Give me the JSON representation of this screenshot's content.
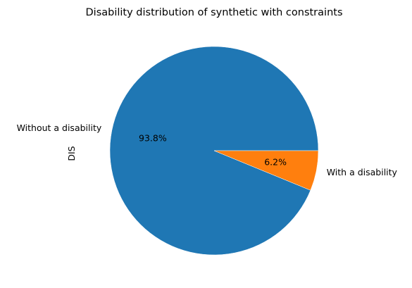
{
  "chart_data": {
    "type": "pie",
    "title": "Disability distribution of synthetic with constraints",
    "ylabel": "DIS",
    "slices": [
      {
        "label": "Without a disability",
        "value": 93.8,
        "pct_label": "93.8%",
        "color": "#1f77b4"
      },
      {
        "label": "With a disability",
        "value": 6.2,
        "pct_label": "6.2%",
        "color": "#ff7f0e"
      }
    ],
    "start_angle_deg": 0,
    "direction": "counterclockwise",
    "legend": "none"
  }
}
